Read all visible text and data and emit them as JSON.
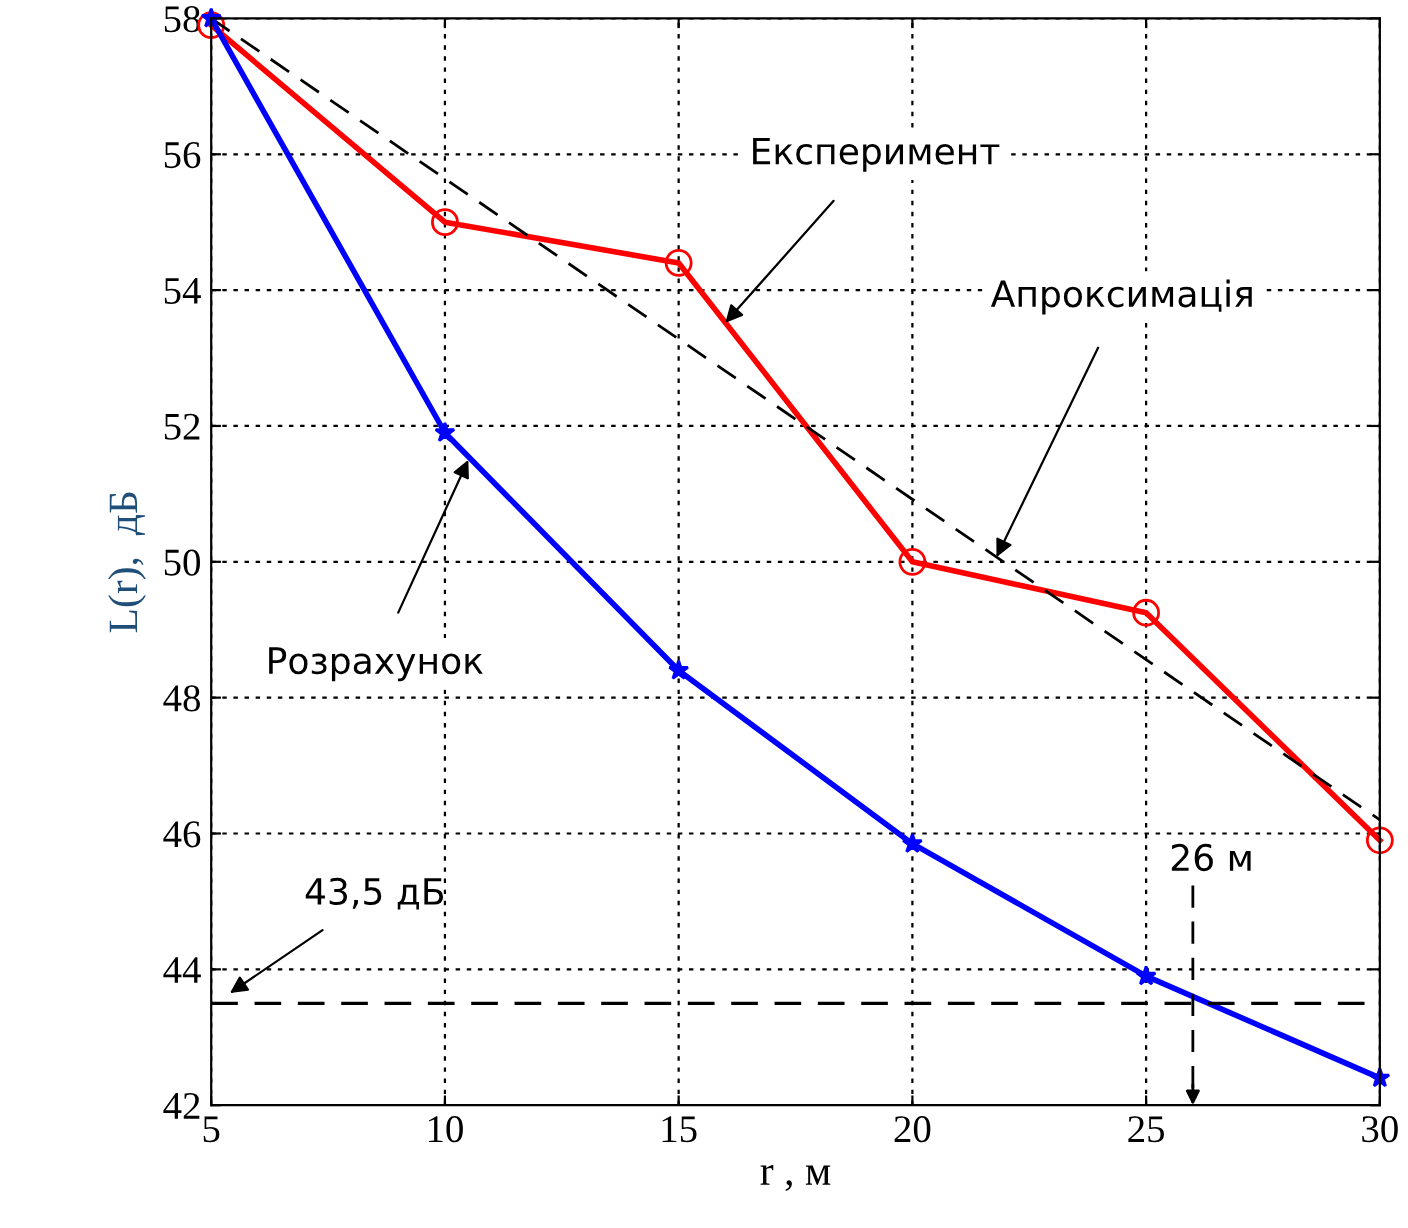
{
  "chart_data": {
    "type": "line",
    "xlabel": "r , м",
    "ylabel": "L(r),  дБ",
    "x": [
      5,
      10,
      15,
      20,
      25,
      30
    ],
    "series": [
      {
        "color": "#ff0000",
        "marker": "circle",
        "line_style": "solid",
        "values": [
          57.9,
          55.0,
          54.4,
          50.0,
          49.25,
          45.9
        ]
      },
      {
        "color": "#000000",
        "marker": "none",
        "line_style": "dashed",
        "x": [
          5,
          30
        ],
        "values": [
          58,
          46.2
        ]
      },
      {
        "color": "#0000ff",
        "marker": "star",
        "line_style": "solid",
        "values": [
          58,
          51.9,
          48.4,
          45.85,
          43.9,
          42.4
        ]
      }
    ],
    "annotations": [
      {
        "text": "Експеримент",
        "x": 16,
        "y": 53.52
      },
      {
        "text": "Апроксимація",
        "x": 21.8,
        "y": 50.07
      },
      {
        "text": "Розрахунок",
        "x": 10.5,
        "y": 51.5
      }
    ],
    "ref_lines": [
      {
        "axis": "y",
        "value": 43.5,
        "label": "43,5 дБ",
        "color": "#000000",
        "line_style": "dashed"
      },
      {
        "axis": "x",
        "value": 26,
        "label": "26 м",
        "color": "#000000",
        "line_style": "dashed"
      }
    ],
    "xlim": [
      5,
      30
    ],
    "xticks": [
      5,
      10,
      15,
      20,
      25,
      30
    ],
    "ylim": [
      42,
      58
    ],
    "yticks": [
      42,
      44,
      46,
      48,
      50,
      52,
      54,
      56,
      58
    ],
    "grid": true,
    "legend": false
  }
}
